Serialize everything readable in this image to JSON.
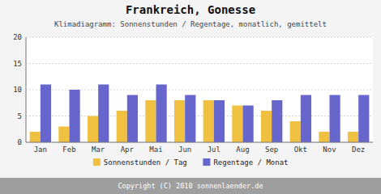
{
  "chart_data": {
    "type": "bar",
    "title": "Frankreich, Gonesse",
    "subtitle": "Klimadiagramm: Sonnenstunden / Regentage, monatlich, gemittelt",
    "footer": "Copyright (C) 2010 sonnenlaender.de",
    "categories": [
      "Jan",
      "Feb",
      "Mar",
      "Apr",
      "Mai",
      "Jun",
      "Jul",
      "Aug",
      "Sep",
      "Okt",
      "Nov",
      "Dez"
    ],
    "series": [
      {
        "name": "Sonnenstunden / Tag",
        "color": "#f0c040",
        "values": [
          2,
          3,
          5,
          6,
          8,
          8,
          8,
          7,
          6,
          4,
          2,
          2
        ]
      },
      {
        "name": "Regentage / Monat",
        "color": "#6666cc",
        "values": [
          11,
          10,
          11,
          9,
          11,
          9,
          8,
          7,
          8,
          9,
          9,
          9
        ]
      }
    ],
    "ylim": [
      0,
      20
    ],
    "yticks": [
      0,
      5,
      10,
      15,
      20
    ],
    "grid": true,
    "legend": "bottom"
  }
}
